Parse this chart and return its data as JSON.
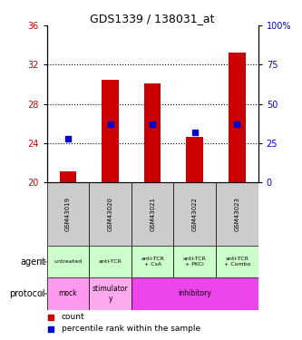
{
  "title": "GDS1339 / 138031_at",
  "samples": [
    "GSM43019",
    "GSM43020",
    "GSM43021",
    "GSM43022",
    "GSM43023"
  ],
  "bar_values": [
    21.1,
    30.5,
    30.1,
    24.6,
    33.2
  ],
  "dot_percentile": [
    28,
    37,
    37,
    32,
    37
  ],
  "ylim_left": [
    20,
    36
  ],
  "ylim_right": [
    0,
    100
  ],
  "yticks_left": [
    20,
    24,
    28,
    32,
    36
  ],
  "yticks_right": [
    0,
    25,
    50,
    75,
    100
  ],
  "ytick_labels_left": [
    "20",
    "24",
    "28",
    "32",
    "36"
  ],
  "ytick_labels_right": [
    "0",
    "25",
    "50",
    "75",
    "100%"
  ],
  "bar_color": "#cc0000",
  "dot_color": "#0000cc",
  "agent_labels": [
    "untreated",
    "anti-TCR",
    "anti-TCR\n+ CsA",
    "anti-TCR\n+ PKCi",
    "anti-TCR\n+ Combo"
  ],
  "agent_bg": "#ccffcc",
  "protocol_info": [
    [
      0,
      0,
      "mock",
      "#ff99ee"
    ],
    [
      1,
      1,
      "stimulator\ny",
      "#ffaaee"
    ],
    [
      2,
      4,
      "inhibitory",
      "#ee44ee"
    ]
  ],
  "sample_bg": "#cccccc",
  "legend_count_color": "#cc0000",
  "legend_pct_color": "#0000cc"
}
